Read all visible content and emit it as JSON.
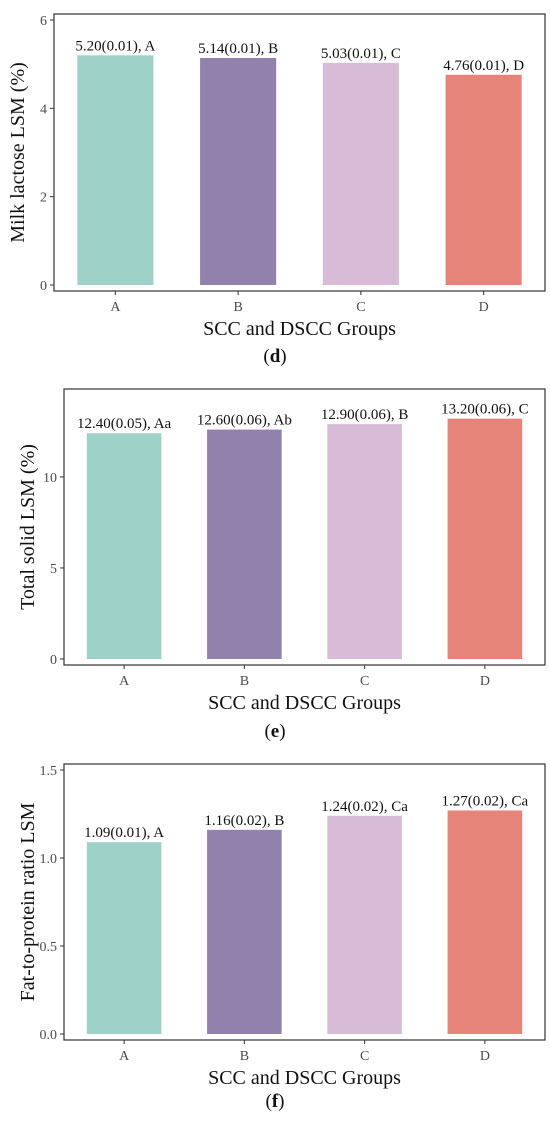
{
  "chart_data": [
    {
      "type": "bar",
      "categories": [
        "A",
        "B",
        "C",
        "D"
      ],
      "values": [
        5.2,
        5.14,
        5.03,
        4.76
      ],
      "labels": [
        "5.20(0.01), A",
        "5.14(0.01), B",
        "5.03(0.01), C",
        "4.76(0.01), D"
      ],
      "colors": [
        "#9ed1c8",
        "#9181ac",
        "#d8bcd7",
        "#e6847a"
      ],
      "xlabel": "SCC and DSCC Groups",
      "ylabel": "Milk lactose LSM (%)",
      "ylim": [
        0,
        6
      ],
      "yticks": [
        "0",
        "2",
        "4",
        "6"
      ],
      "grid": false,
      "caption_letter": "d"
    },
    {
      "type": "bar",
      "categories": [
        "A",
        "B",
        "C",
        "D"
      ],
      "values": [
        12.4,
        12.6,
        12.9,
        13.2
      ],
      "labels": [
        "12.40(0.05), Aa",
        "12.60(0.06), Ab",
        "12.90(0.06), B",
        "13.20(0.06), C"
      ],
      "colors": [
        "#9ed1c8",
        "#9181ac",
        "#d8bcd7",
        "#e6847a"
      ],
      "xlabel": "SCC and DSCC Groups",
      "ylabel": "Total solid LSM (%)",
      "ylim": [
        0,
        14.5
      ],
      "yticks": [
        "0",
        "5",
        "10"
      ],
      "grid": false,
      "caption_letter": "e"
    },
    {
      "type": "bar",
      "categories": [
        "A",
        "B",
        "C",
        "D"
      ],
      "values": [
        1.09,
        1.16,
        1.24,
        1.27
      ],
      "labels": [
        "1.09(0.01), A",
        "1.16(0.02), B",
        "1.24(0.02), Ca",
        "1.27(0.02), Ca"
      ],
      "colors": [
        "#9ed1c8",
        "#9181ac",
        "#d8bcd7",
        "#e6847a"
      ],
      "xlabel": "SCC and DSCC Groups",
      "ylabel": "Fat-to-protein ratio LSM",
      "ylim": [
        0,
        1.5
      ],
      "yticks": [
        "0.0",
        "0.5",
        "1.0",
        "1.5"
      ],
      "grid": false,
      "caption_letter": "f"
    }
  ]
}
